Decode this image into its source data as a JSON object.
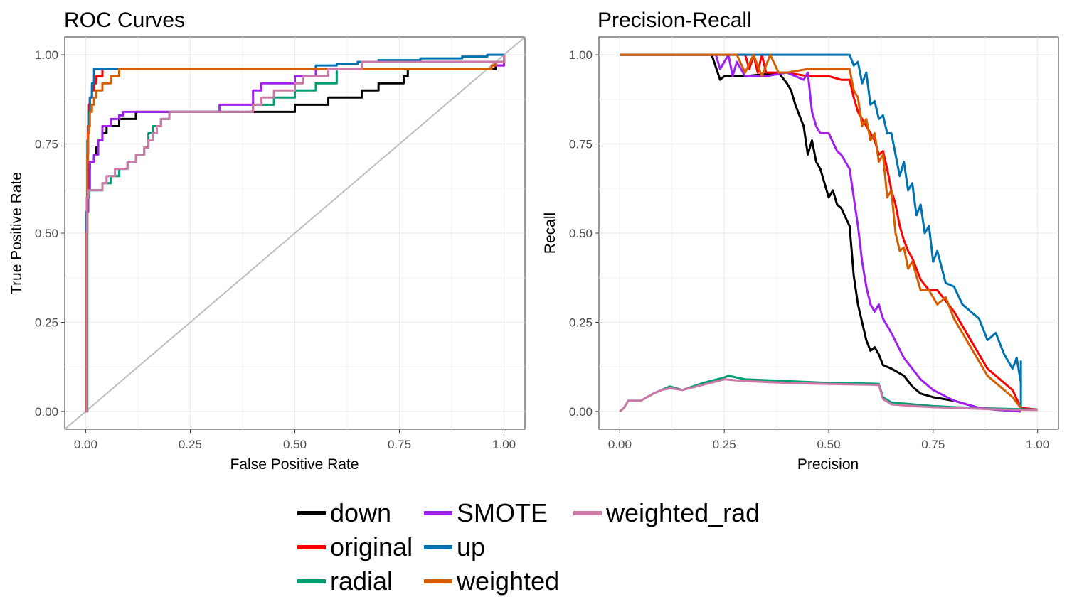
{
  "legend": {
    "position": "bottom",
    "items": [
      {
        "label": "down",
        "color": "#000000"
      },
      {
        "label": "original",
        "color": "#FF0000"
      },
      {
        "label": "radial",
        "color": "#009E73"
      },
      {
        "label": "SMOTE",
        "color": "#A020F0"
      },
      {
        "label": "up",
        "color": "#0072B2"
      },
      {
        "label": "weighted",
        "color": "#D55E00"
      },
      {
        "label": "weighted_rad",
        "color": "#CC79A7"
      }
    ]
  },
  "chart_data": [
    {
      "type": "line",
      "title": "ROC Curves",
      "xlabel": "False Positive Rate",
      "ylabel": "True Positive Rate",
      "xlim": [
        0,
        1
      ],
      "ylim": [
        0,
        1
      ],
      "xticks": [
        "0.00",
        "0.25",
        "0.50",
        "0.75",
        "1.00"
      ],
      "yticks": [
        "0.00",
        "0.25",
        "0.50",
        "0.75",
        "1.00"
      ],
      "grid": true,
      "reference_line": {
        "x": [
          0,
          1
        ],
        "y": [
          0,
          1
        ],
        "color": "#BEBEBE"
      },
      "series": [
        {
          "name": "down",
          "x": [
            0,
            0.002,
            0.004,
            0.006,
            0.008,
            0.01,
            0.015,
            0.02,
            0.025,
            0.03,
            0.04,
            0.05,
            0.06,
            0.08,
            0.1,
            0.12,
            0.14,
            0.16,
            0.2,
            0.3,
            0.36,
            0.48,
            0.5,
            0.54,
            0.58,
            0.62,
            0.66,
            0.7,
            0.72,
            0.76,
            0.77,
            0.83,
            0.98,
            1.0
          ],
          "y": [
            0,
            0.56,
            0.62,
            0.66,
            0.68,
            0.7,
            0.7,
            0.72,
            0.74,
            0.76,
            0.78,
            0.8,
            0.8,
            0.82,
            0.82,
            0.84,
            0.84,
            0.84,
            0.84,
            0.84,
            0.84,
            0.84,
            0.86,
            0.86,
            0.88,
            0.88,
            0.9,
            0.92,
            0.92,
            0.94,
            0.96,
            0.96,
            0.98,
            1.0
          ]
        },
        {
          "name": "original",
          "x": [
            0,
            0.003,
            0.005,
            0.008,
            0.01,
            0.015,
            0.02,
            0.025,
            0.03,
            0.04,
            0.06,
            0.07,
            0.09,
            0.3,
            0.6,
            0.9,
            0.97,
            1.0
          ],
          "y": [
            0,
            0.6,
            0.8,
            0.86,
            0.88,
            0.9,
            0.92,
            0.94,
            0.94,
            0.96,
            0.96,
            0.96,
            0.96,
            0.96,
            0.96,
            0.96,
            0.97,
            1.0
          ]
        },
        {
          "name": "radial",
          "x": [
            0,
            0.004,
            0.008,
            0.01,
            0.02,
            0.04,
            0.06,
            0.08,
            0.1,
            0.12,
            0.14,
            0.15,
            0.16,
            0.18,
            0.2,
            0.22,
            0.25,
            0.3,
            0.35,
            0.4,
            0.45,
            0.5,
            0.55,
            0.6,
            0.66,
            0.7,
            0.8,
            0.9,
            0.96,
            1.0
          ],
          "y": [
            0,
            0.6,
            0.62,
            0.62,
            0.62,
            0.64,
            0.66,
            0.68,
            0.7,
            0.72,
            0.74,
            0.78,
            0.8,
            0.82,
            0.84,
            0.84,
            0.84,
            0.84,
            0.84,
            0.86,
            0.88,
            0.9,
            0.92,
            0.96,
            0.98,
            0.98,
            0.98,
            0.98,
            0.98,
            1.0
          ]
        },
        {
          "name": "SMOTE",
          "x": [
            0,
            0.003,
            0.006,
            0.01,
            0.02,
            0.03,
            0.04,
            0.05,
            0.06,
            0.07,
            0.08,
            0.09,
            0.1,
            0.12,
            0.15,
            0.2,
            0.25,
            0.3,
            0.32,
            0.35,
            0.4,
            0.42,
            0.45,
            0.5,
            0.55,
            0.6,
            0.66,
            0.7,
            0.8,
            0.9,
            0.96,
            0.98,
            1.0
          ],
          "y": [
            0,
            0.56,
            0.62,
            0.7,
            0.72,
            0.76,
            0.8,
            0.8,
            0.82,
            0.82,
            0.83,
            0.84,
            0.84,
            0.84,
            0.84,
            0.84,
            0.84,
            0.84,
            0.86,
            0.86,
            0.9,
            0.92,
            0.92,
            0.94,
            0.96,
            0.96,
            0.98,
            0.98,
            0.98,
            0.98,
            0.98,
            0.97,
            1.0
          ]
        },
        {
          "name": "up",
          "x": [
            0,
            0.002,
            0.004,
            0.006,
            0.008,
            0.01,
            0.015,
            0.02,
            0.025,
            0.05,
            0.1,
            0.2,
            0.3,
            0.4,
            0.5,
            0.55,
            0.6,
            0.65,
            0.7,
            0.8,
            0.9,
            0.96,
            1.0
          ],
          "y": [
            0,
            0.56,
            0.76,
            0.8,
            0.84,
            0.88,
            0.92,
            0.96,
            0.96,
            0.96,
            0.96,
            0.96,
            0.96,
            0.96,
            0.96,
            0.97,
            0.975,
            0.98,
            0.985,
            0.99,
            0.995,
            1.0,
            1.0
          ]
        },
        {
          "name": "weighted",
          "x": [
            0,
            0.002,
            0.004,
            0.006,
            0.008,
            0.01,
            0.015,
            0.02,
            0.025,
            0.03,
            0.04,
            0.05,
            0.06,
            0.07,
            0.08,
            0.09,
            0.2,
            0.4,
            0.6,
            0.8,
            0.95,
            0.97,
            0.98,
            1.0
          ],
          "y": [
            0,
            0.5,
            0.72,
            0.78,
            0.8,
            0.84,
            0.86,
            0.88,
            0.9,
            0.9,
            0.92,
            0.92,
            0.94,
            0.94,
            0.96,
            0.96,
            0.96,
            0.96,
            0.96,
            0.96,
            0.96,
            0.97,
            0.98,
            1.0
          ]
        },
        {
          "name": "weighted_rad",
          "x": [
            0,
            0.003,
            0.006,
            0.01,
            0.02,
            0.04,
            0.05,
            0.06,
            0.07,
            0.08,
            0.1,
            0.12,
            0.13,
            0.14,
            0.15,
            0.16,
            0.17,
            0.18,
            0.19,
            0.2,
            0.3,
            0.35,
            0.4,
            0.42,
            0.45,
            0.5,
            0.52,
            0.58,
            0.66,
            0.7,
            0.8,
            0.96,
            0.98,
            1.0
          ],
          "y": [
            0,
            0.6,
            0.62,
            0.62,
            0.62,
            0.64,
            0.66,
            0.66,
            0.68,
            0.68,
            0.7,
            0.72,
            0.72,
            0.74,
            0.76,
            0.78,
            0.8,
            0.82,
            0.82,
            0.84,
            0.84,
            0.84,
            0.86,
            0.88,
            0.9,
            0.92,
            0.94,
            0.96,
            0.98,
            0.98,
            0.98,
            0.98,
            0.98,
            1.0
          ]
        }
      ]
    },
    {
      "type": "line",
      "title": "Precision-Recall",
      "xlabel": "Precision",
      "ylabel": "Recall",
      "xlim": [
        0,
        1
      ],
      "ylim": [
        0,
        1
      ],
      "xticks": [
        "0.00",
        "0.25",
        "0.50",
        "0.75",
        "1.00"
      ],
      "yticks": [
        "0.00",
        "0.25",
        "0.50",
        "0.75",
        "1.00"
      ],
      "grid": true,
      "series": [
        {
          "name": "down",
          "x": [
            0.0,
            0.22,
            0.24,
            0.25,
            0.3,
            0.38,
            0.4,
            0.41,
            0.42,
            0.43,
            0.44,
            0.45,
            0.46,
            0.47,
            0.48,
            0.5,
            0.51,
            0.52,
            0.53,
            0.55,
            0.555,
            0.56,
            0.57,
            0.58,
            0.59,
            0.6,
            0.61,
            0.62,
            0.63,
            0.65,
            0.68,
            0.7,
            0.72,
            0.75,
            0.8,
            0.86,
            0.9,
            0.96
          ],
          "y": [
            1.0,
            1.0,
            0.93,
            0.94,
            0.94,
            0.95,
            0.92,
            0.9,
            0.86,
            0.83,
            0.8,
            0.72,
            0.76,
            0.7,
            0.68,
            0.6,
            0.62,
            0.58,
            0.57,
            0.52,
            0.45,
            0.38,
            0.3,
            0.25,
            0.2,
            0.17,
            0.18,
            0.16,
            0.13,
            0.12,
            0.1,
            0.07,
            0.05,
            0.04,
            0.03,
            0.01,
            0.005,
            0.0
          ]
        },
        {
          "name": "original",
          "x": [
            0.0,
            0.3,
            0.31,
            0.32,
            0.33,
            0.34,
            0.35,
            0.4,
            0.45,
            0.48,
            0.5,
            0.53,
            0.55,
            0.56,
            0.57,
            0.58,
            0.59,
            0.6,
            0.61,
            0.62,
            0.63,
            0.64,
            0.65,
            0.66,
            0.67,
            0.68,
            0.69,
            0.7,
            0.72,
            0.74,
            0.76,
            0.78,
            0.8,
            0.82,
            0.84,
            0.86,
            0.88,
            0.9,
            0.92,
            0.94,
            0.96,
            1.0
          ],
          "y": [
            1.0,
            1.0,
            0.96,
            1.0,
            0.95,
            1.0,
            0.95,
            0.95,
            0.94,
            0.94,
            0.94,
            0.93,
            0.93,
            0.88,
            0.84,
            0.82,
            0.8,
            0.78,
            0.76,
            0.72,
            0.73,
            0.68,
            0.62,
            0.58,
            0.52,
            0.48,
            0.45,
            0.43,
            0.37,
            0.34,
            0.34,
            0.31,
            0.28,
            0.24,
            0.2,
            0.16,
            0.12,
            0.1,
            0.08,
            0.06,
            0.01,
            0.005
          ]
        },
        {
          "name": "radial",
          "x": [
            0.0,
            0.01,
            0.02,
            0.05,
            0.08,
            0.1,
            0.12,
            0.15,
            0.2,
            0.25,
            0.26,
            0.3,
            0.4,
            0.5,
            0.6,
            0.62,
            0.63,
            0.65,
            0.7,
            0.75,
            0.8,
            0.9,
            1.0
          ],
          "y": [
            0.0,
            0.01,
            0.03,
            0.03,
            0.05,
            0.06,
            0.07,
            0.06,
            0.08,
            0.095,
            0.1,
            0.09,
            0.085,
            0.08,
            0.078,
            0.077,
            0.04,
            0.025,
            0.02,
            0.015,
            0.012,
            0.008,
            0.005
          ]
        },
        {
          "name": "SMOTE",
          "x": [
            0.0,
            0.23,
            0.24,
            0.26,
            0.27,
            0.28,
            0.3,
            0.35,
            0.4,
            0.44,
            0.45,
            0.46,
            0.47,
            0.48,
            0.5,
            0.52,
            0.53,
            0.55,
            0.56,
            0.57,
            0.58,
            0.59,
            0.6,
            0.61,
            0.62,
            0.63,
            0.65,
            0.68,
            0.7,
            0.72,
            0.75,
            0.8,
            0.86,
            0.9,
            0.96
          ],
          "y": [
            1.0,
            1.0,
            0.96,
            1.0,
            0.94,
            0.98,
            0.94,
            0.94,
            0.95,
            0.93,
            0.95,
            0.84,
            0.8,
            0.78,
            0.78,
            0.73,
            0.72,
            0.68,
            0.6,
            0.52,
            0.42,
            0.35,
            0.3,
            0.28,
            0.3,
            0.26,
            0.22,
            0.15,
            0.12,
            0.09,
            0.06,
            0.03,
            0.01,
            0.005,
            0.0
          ]
        },
        {
          "name": "up",
          "x": [
            0.0,
            0.3,
            0.4,
            0.5,
            0.53,
            0.55,
            0.56,
            0.57,
            0.58,
            0.59,
            0.6,
            0.61,
            0.62,
            0.63,
            0.64,
            0.65,
            0.66,
            0.67,
            0.68,
            0.69,
            0.7,
            0.71,
            0.72,
            0.73,
            0.74,
            0.75,
            0.76,
            0.78,
            0.8,
            0.82,
            0.84,
            0.86,
            0.88,
            0.9,
            0.92,
            0.94,
            0.95,
            0.96,
            0.96,
            0.96
          ],
          "y": [
            1.0,
            1.0,
            1.0,
            1.0,
            1.0,
            1.0,
            0.97,
            0.98,
            0.92,
            0.95,
            0.86,
            0.87,
            0.82,
            0.83,
            0.78,
            0.78,
            0.72,
            0.66,
            0.7,
            0.62,
            0.64,
            0.55,
            0.58,
            0.5,
            0.52,
            0.42,
            0.45,
            0.36,
            0.35,
            0.3,
            0.28,
            0.26,
            0.2,
            0.22,
            0.16,
            0.12,
            0.15,
            0.08,
            0.14,
            0.01
          ]
        },
        {
          "name": "weighted",
          "x": [
            0.0,
            0.28,
            0.3,
            0.32,
            0.34,
            0.36,
            0.38,
            0.4,
            0.45,
            0.5,
            0.53,
            0.55,
            0.56,
            0.57,
            0.58,
            0.59,
            0.6,
            0.61,
            0.62,
            0.63,
            0.64,
            0.65,
            0.66,
            0.67,
            0.68,
            0.69,
            0.7,
            0.72,
            0.74,
            0.76,
            0.78,
            0.8,
            0.82,
            0.84,
            0.86,
            0.88,
            0.9,
            0.92,
            0.94,
            0.96
          ],
          "y": [
            1.0,
            1.0,
            0.95,
            1.0,
            0.94,
            1.0,
            0.95,
            0.95,
            0.96,
            0.96,
            0.96,
            0.96,
            0.9,
            0.88,
            0.8,
            0.82,
            0.76,
            0.78,
            0.7,
            0.72,
            0.6,
            0.62,
            0.5,
            0.45,
            0.46,
            0.4,
            0.42,
            0.34,
            0.34,
            0.3,
            0.32,
            0.26,
            0.22,
            0.18,
            0.14,
            0.1,
            0.08,
            0.06,
            0.04,
            0.01
          ]
        },
        {
          "name": "weighted_rad",
          "x": [
            0.0,
            0.01,
            0.02,
            0.05,
            0.08,
            0.1,
            0.12,
            0.15,
            0.2,
            0.25,
            0.3,
            0.4,
            0.5,
            0.6,
            0.62,
            0.63,
            0.65,
            0.7,
            0.75,
            0.8,
            0.9,
            1.0
          ],
          "y": [
            0.0,
            0.01,
            0.03,
            0.03,
            0.05,
            0.06,
            0.065,
            0.06,
            0.075,
            0.09,
            0.085,
            0.08,
            0.077,
            0.075,
            0.074,
            0.035,
            0.02,
            0.015,
            0.012,
            0.01,
            0.006,
            0.004
          ]
        }
      ]
    }
  ]
}
